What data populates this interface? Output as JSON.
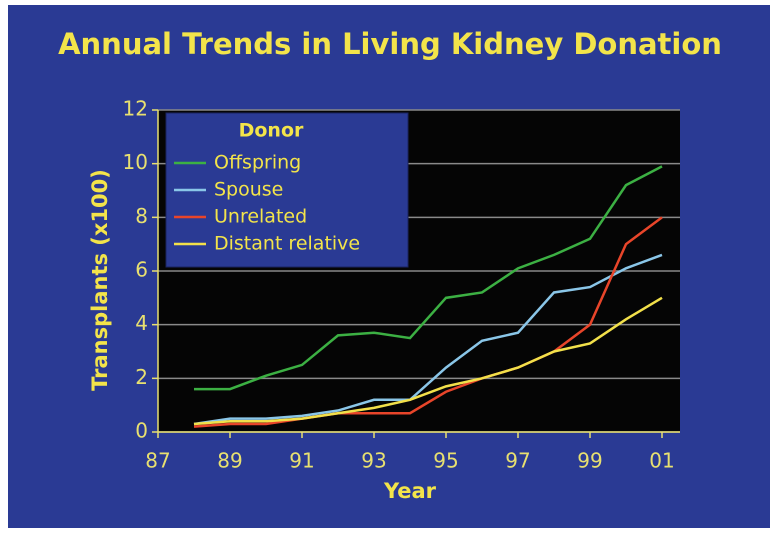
{
  "chart_data": {
    "type": "line",
    "title": "Annual Trends in Living Kidney Donation",
    "xlabel": "Year",
    "ylabel": "Transplants (x100)",
    "legend_title": "Donor",
    "legend": "upper left",
    "grid": true,
    "x": [
      1988,
      1989,
      1990,
      1991,
      1992,
      1993,
      1994,
      1995,
      1996,
      1997,
      1998,
      1999,
      2000,
      2001
    ],
    "xlim": [
      1987,
      2001.5
    ],
    "xticks": [
      {
        "value": 1987,
        "label": "87"
      },
      {
        "value": 1989,
        "label": "89"
      },
      {
        "value": 1991,
        "label": "91"
      },
      {
        "value": 1993,
        "label": "93"
      },
      {
        "value": 1995,
        "label": "95"
      },
      {
        "value": 1997,
        "label": "97"
      },
      {
        "value": 1999,
        "label": "99"
      },
      {
        "value": 2001,
        "label": "01"
      }
    ],
    "ylim": [
      0,
      12
    ],
    "yticks": [
      0,
      2,
      4,
      6,
      8,
      10,
      12
    ],
    "series": [
      {
        "name": "Offspring",
        "color": "#3cb043",
        "values": [
          1.6,
          1.6,
          2.1,
          2.5,
          3.6,
          3.7,
          3.5,
          5.0,
          5.2,
          6.1,
          6.6,
          7.2,
          9.2,
          9.9
        ]
      },
      {
        "name": "Spouse",
        "color": "#8ac6e8",
        "values": [
          0.3,
          0.5,
          0.5,
          0.6,
          0.8,
          1.2,
          1.2,
          2.4,
          3.4,
          3.7,
          5.2,
          5.4,
          6.1,
          6.6
        ]
      },
      {
        "name": "Unrelated",
        "color": "#e8452a",
        "values": [
          0.2,
          0.3,
          0.3,
          0.5,
          0.7,
          0.7,
          0.7,
          1.5,
          2.0,
          2.4,
          3.0,
          4.0,
          7.0,
          8.0
        ]
      },
      {
        "name": "Distant relative",
        "color": "#f2e04a",
        "values": [
          0.3,
          0.4,
          0.4,
          0.5,
          0.7,
          0.9,
          1.2,
          1.7,
          2.0,
          2.4,
          3.0,
          3.3,
          4.2,
          5.0
        ]
      }
    ]
  }
}
